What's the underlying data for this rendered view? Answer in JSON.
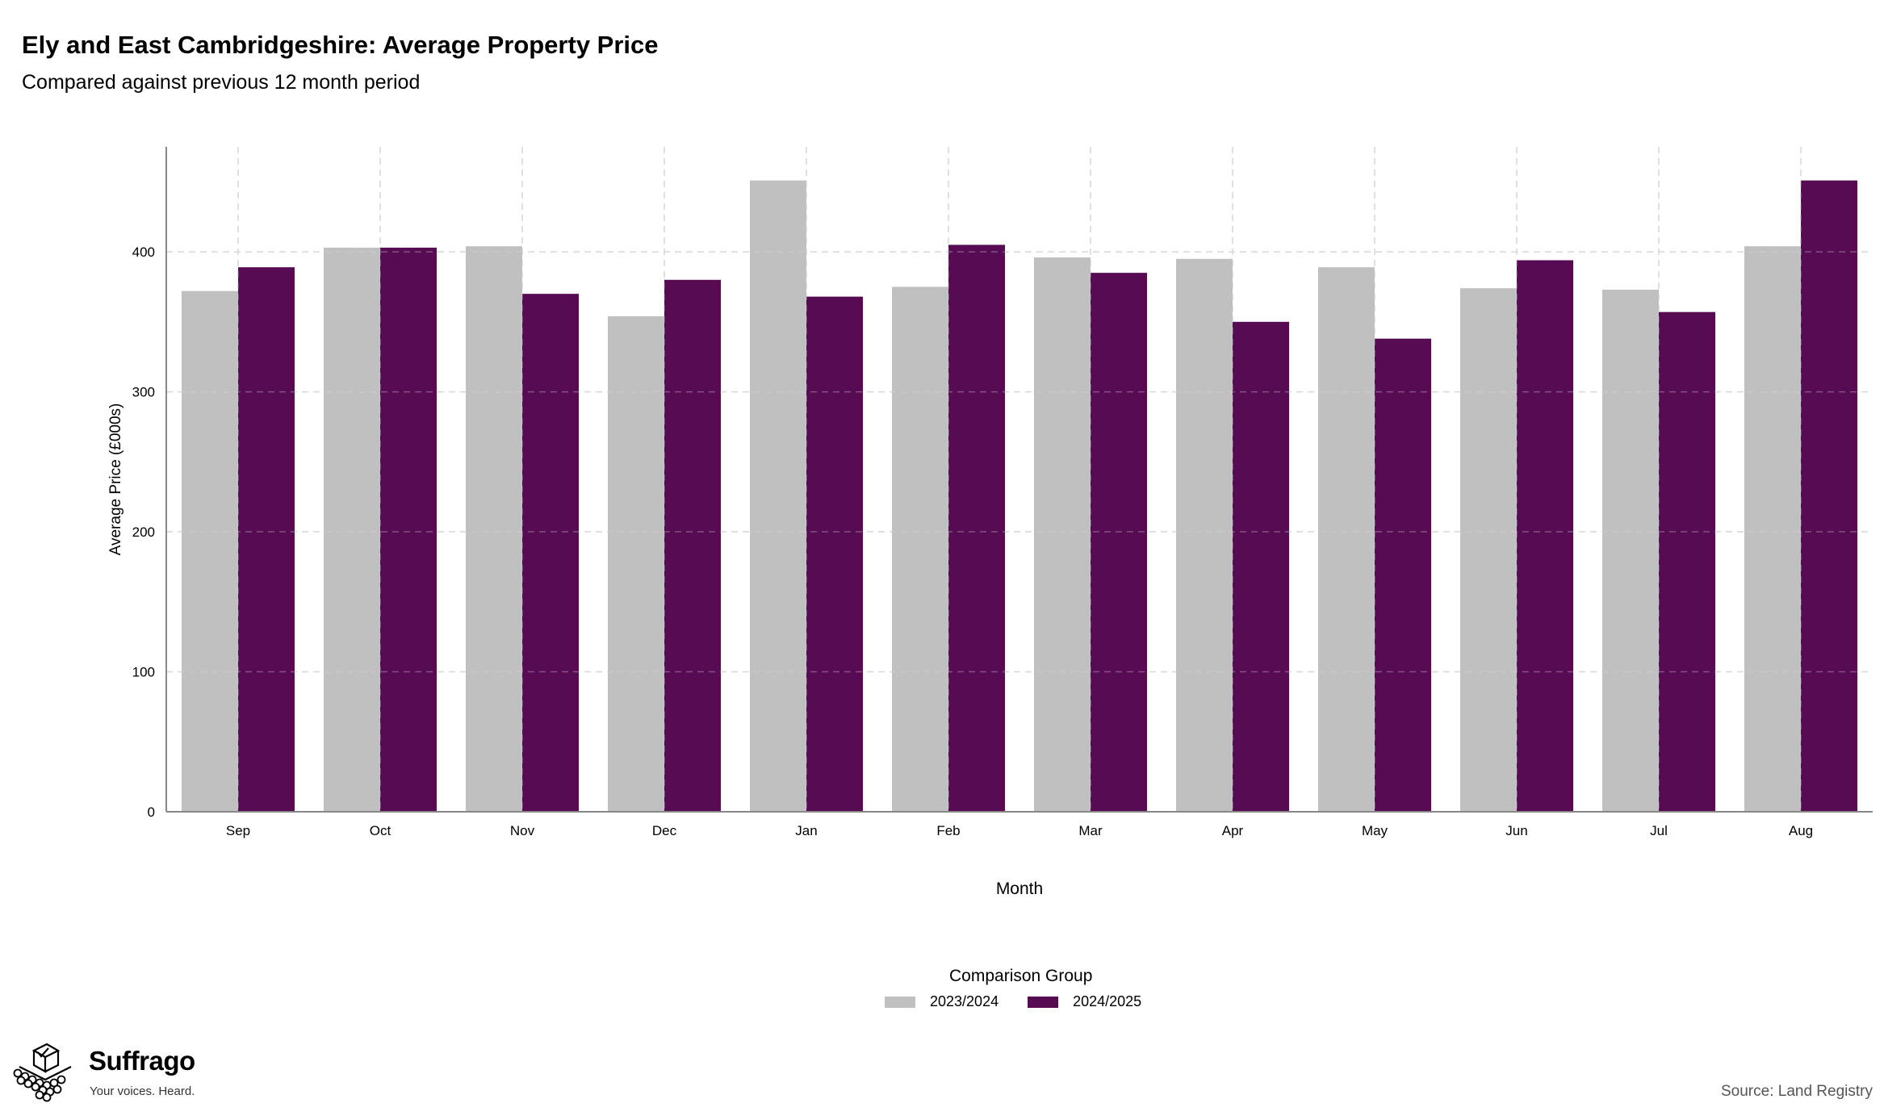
{
  "chart_data": {
    "type": "bar",
    "title": "Ely and East Cambridgeshire: Average Property Price",
    "subtitle": "Compared against previous 12 month period",
    "xlabel": "Month",
    "ylabel": "Average Price (£000s)",
    "ylim": [
      0,
      475
    ],
    "yticks": [
      0,
      100,
      200,
      300,
      400
    ],
    "grid": true,
    "legend_title": "Comparison Group",
    "legend_position": "bottom",
    "categories": [
      "Sep",
      "Oct",
      "Nov",
      "Dec",
      "Jan",
      "Feb",
      "Mar",
      "Apr",
      "May",
      "Jun",
      "Jul",
      "Aug"
    ],
    "series": [
      {
        "name": "2023/2024",
        "color": "#c0c0c0",
        "values": [
          372,
          403,
          404,
          354,
          451,
          375,
          396,
          395,
          389,
          374,
          373,
          404
        ]
      },
      {
        "name": "2024/2025",
        "color": "#560b52",
        "values": [
          389,
          403,
          370,
          380,
          368,
          405,
          385,
          350,
          338,
          394,
          357,
          451
        ]
      }
    ]
  },
  "branding": {
    "name": "Suffrago",
    "tagline": "Your voices. Heard.",
    "logo_icon": "ballot-box-icon"
  },
  "source": "Source: Land Registry"
}
